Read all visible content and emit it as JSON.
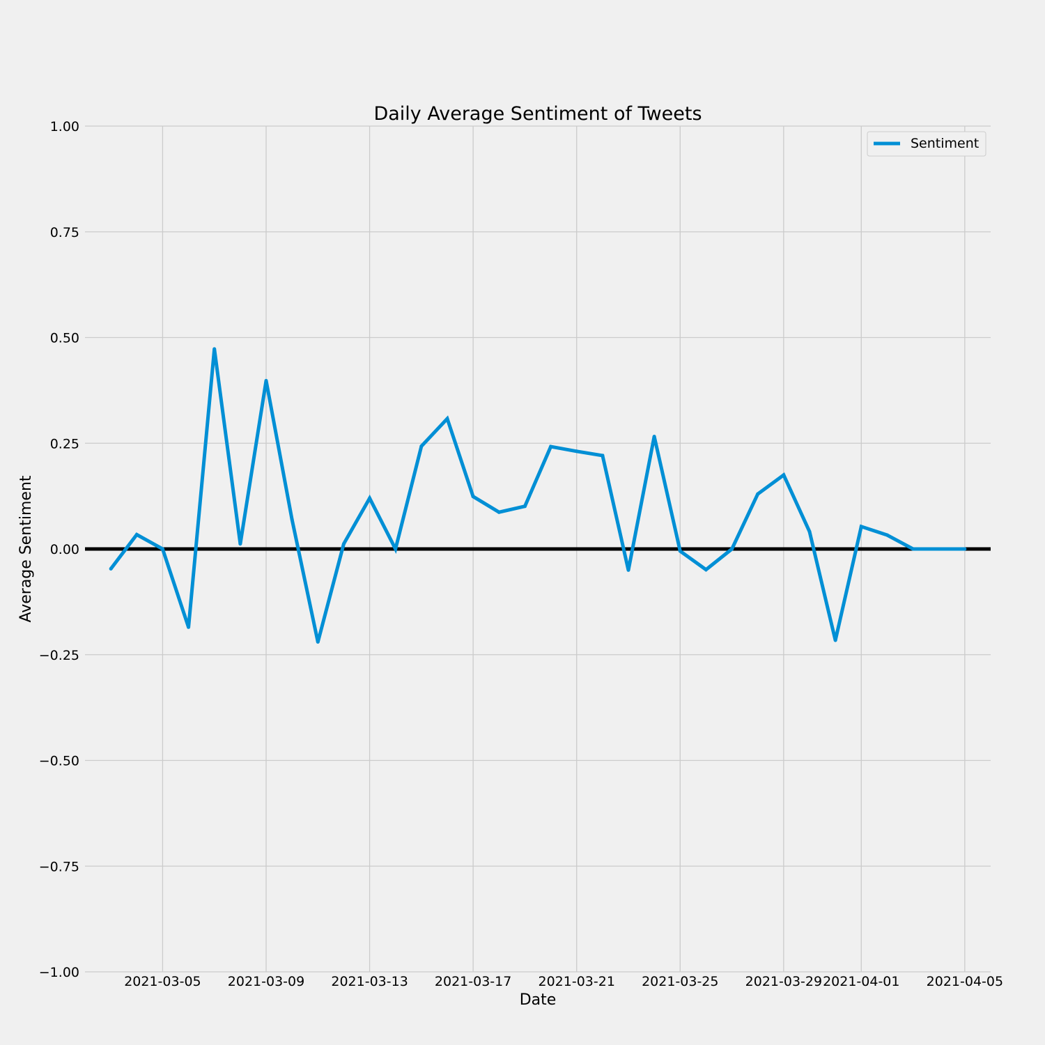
{
  "chart_data": {
    "type": "line",
    "title": "Daily Average Sentiment of Tweets",
    "xlabel": "Date",
    "ylabel": "Average Sentiment",
    "ylim": [
      -1.0,
      1.0
    ],
    "xlim": [
      "2021-03-02",
      "2021-04-06"
    ],
    "grid": true,
    "legend": "top-right",
    "zero_line": 0.0,
    "x_ticks": [
      "2021-03-05",
      "2021-03-09",
      "2021-03-13",
      "2021-03-17",
      "2021-03-21",
      "2021-03-25",
      "2021-03-29",
      "2021-04-01",
      "2021-04-05"
    ],
    "y_ticks": [
      {
        "value": 1.0,
        "label": "1.00"
      },
      {
        "value": 0.75,
        "label": "0.75"
      },
      {
        "value": 0.5,
        "label": "0.50"
      },
      {
        "value": 0.25,
        "label": "0.25"
      },
      {
        "value": 0.0,
        "label": "0.00"
      },
      {
        "value": -0.25,
        "label": "−0.25"
      },
      {
        "value": -0.5,
        "label": "−0.50"
      },
      {
        "value": -0.75,
        "label": "−0.75"
      },
      {
        "value": -1.0,
        "label": "−1.00"
      }
    ],
    "x": [
      "2021-03-03",
      "2021-03-04",
      "2021-03-05",
      "2021-03-06",
      "2021-03-07",
      "2021-03-08",
      "2021-03-09",
      "2021-03-10",
      "2021-03-11",
      "2021-03-12",
      "2021-03-13",
      "2021-03-14",
      "2021-03-15",
      "2021-03-16",
      "2021-03-17",
      "2021-03-18",
      "2021-03-19",
      "2021-03-20",
      "2021-03-21",
      "2021-03-22",
      "2021-03-23",
      "2021-03-24",
      "2021-03-25",
      "2021-03-26",
      "2021-03-27",
      "2021-03-28",
      "2021-03-29",
      "2021-03-30",
      "2021-03-31",
      "2021-04-01",
      "2021-04-02",
      "2021-04-03",
      "2021-04-04",
      "2021-04-05"
    ],
    "series": [
      {
        "name": "Sentiment",
        "color": "#008fd5",
        "values": [
          -0.047,
          0.034,
          0.0,
          -0.185,
          0.473,
          0.012,
          0.398,
          0.07,
          -0.22,
          0.012,
          0.12,
          0.0,
          0.243,
          0.308,
          0.124,
          0.087,
          0.101,
          0.242,
          0.231,
          0.221,
          -0.05,
          0.266,
          -0.005,
          -0.049,
          0.0,
          0.13,
          0.175,
          0.041,
          -0.216,
          0.053,
          0.033,
          0.0,
          0.0,
          0.0
        ]
      }
    ]
  }
}
